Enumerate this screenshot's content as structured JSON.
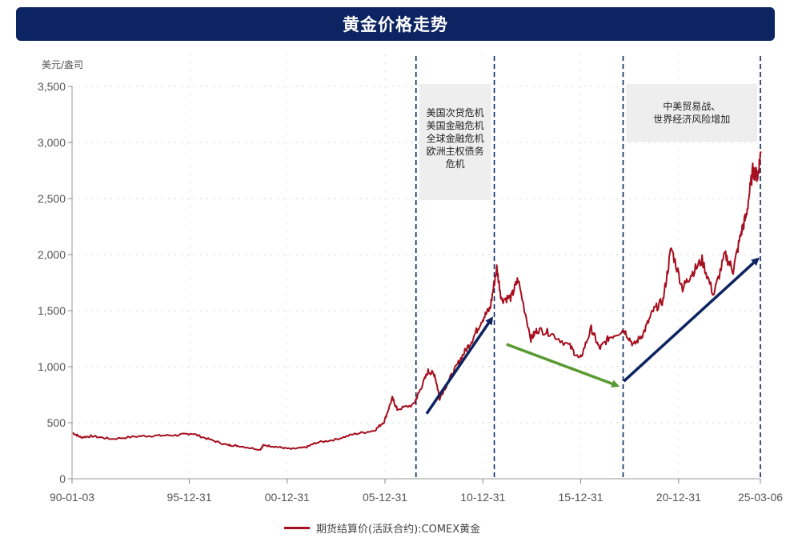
{
  "page_title": "黄金价格走势",
  "colors": {
    "title_bg": "#0c2461",
    "series": "#a50f1e",
    "arrow_up": "#0c2461",
    "arrow_down": "#5a9a32",
    "shade": "#eeeeee"
  },
  "chart_data": {
    "type": "line",
    "title": "黄金价格走势",
    "unit_label": "美元/盎司",
    "x_type": "date",
    "x_tick_labels": [
      "90-01-03",
      "95-12-31",
      "00-12-31",
      "05-12-31",
      "10-12-31",
      "15-12-31",
      "20-12-31",
      "25-03-06"
    ],
    "x_ticks": [
      "1990-01-03",
      "1995-12-31",
      "2000-12-31",
      "2005-12-31",
      "2010-12-31",
      "2015-12-31",
      "2020-12-31",
      "2025-03-06"
    ],
    "y_tick_labels": [
      "0",
      "500",
      "1,000",
      "1,500",
      "2,000",
      "2,500",
      "3,000",
      "3,500"
    ],
    "ylim": [
      0,
      3500
    ],
    "xlim": [
      "1990-01-03",
      "2025-03-06"
    ],
    "grid": true,
    "legend_position": "bottom",
    "series": [
      {
        "name": "期货结算价(活跃合约):COMEX黄金",
        "x": [
          "1990-01",
          "1990-06",
          "1991-01",
          "1992-01",
          "1993-06",
          "1994-06",
          "1995-06",
          "1996-02",
          "1997-01",
          "1997-12",
          "1998-06",
          "1999-08",
          "1999-10",
          "2000-06",
          "2001-03",
          "2001-12",
          "2002-06",
          "2003-06",
          "2004-06",
          "2005-06",
          "2005-12",
          "2006-05",
          "2006-08",
          "2007-06",
          "2007-10",
          "2008-03",
          "2008-07",
          "2008-10",
          "2009-06",
          "2009-12",
          "2010-06",
          "2010-12",
          "2011-05",
          "2011-09",
          "2011-12",
          "2012-06",
          "2012-10",
          "2013-06",
          "2013-10",
          "2014-06",
          "2015-06",
          "2015-12",
          "2016-07",
          "2016-12",
          "2017-06",
          "2018-03",
          "2018-09",
          "2019-03",
          "2019-09",
          "2020-03",
          "2020-08",
          "2021-03",
          "2021-08",
          "2022-03",
          "2022-10",
          "2023-05",
          "2023-10",
          "2024-03",
          "2024-06",
          "2024-10",
          "2025-01",
          "2025-03"
        ],
        "y": [
          410,
          370,
          380,
          355,
          380,
          385,
          390,
          405,
          350,
          300,
          295,
          260,
          300,
          285,
          265,
          280,
          320,
          350,
          400,
          430,
          510,
          720,
          620,
          660,
          790,
          960,
          930,
          720,
          940,
          1100,
          1240,
          1420,
          1520,
          1880,
          1600,
          1620,
          1780,
          1250,
          1330,
          1300,
          1180,
          1060,
          1340,
          1160,
          1260,
          1330,
          1190,
          1300,
          1500,
          1590,
          2060,
          1700,
          1820,
          1950,
          1640,
          2000,
          1860,
          2200,
          2350,
          2750,
          2700,
          2920
        ]
      }
    ],
    "annotations": [
      {
        "lines": [
          "美国次贷危机",
          "美国金融危机",
          "全球金融危机",
          "欧洲主权债务",
          "危机"
        ],
        "period": [
          "2007-08-01",
          "2011-08-01"
        ]
      },
      {
        "lines": [
          "中美贸易战、",
          "世界经济风险增加"
        ],
        "period": [
          "2018-03-01",
          "2025-03-06"
        ]
      }
    ],
    "vertical_markers": [
      "2007-08-01",
      "2011-08-01",
      "2018-03-01",
      "2025-03-06"
    ],
    "trend_arrows": [
      {
        "direction": "up",
        "from": [
          "2008-02",
          580
        ],
        "to": [
          "2011-06",
          1430
        ]
      },
      {
        "direction": "down",
        "from": [
          "2012-03",
          1200
        ],
        "to": [
          "2017-11",
          830
        ]
      },
      {
        "direction": "up",
        "from": [
          "2018-03",
          870
        ],
        "to": [
          "2025-01",
          1960
        ]
      }
    ]
  }
}
